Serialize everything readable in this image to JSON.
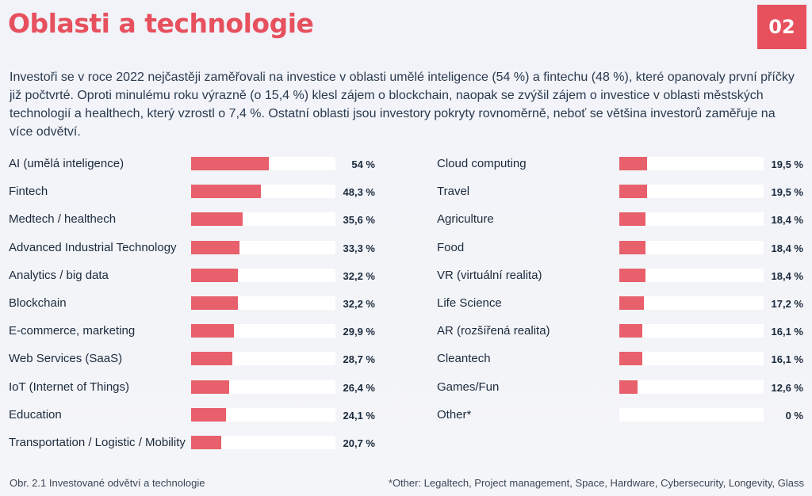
{
  "header": {
    "title": "Oblasti a technologie",
    "page_number": "02"
  },
  "intro": "Investoři se v roce 2022 nejčastěji zaměřovali na investice v oblasti umělé inteligence (54 %) a fintechu (48 %), které opanovaly první příčky již počtvrté. Oproti minulému roku výrazně (o 15,4 %) klesl zájem o blockchain, naopak se zvýšil zájem o investice v oblasti městských technologií a healthech, který vzrostl o 7,4 %. Ostatní oblasti jsou investory pokryty rovnoměrně, neboť se většina investorů zaměřuje na více odvětví.",
  "colors": {
    "accent": "#e7505d",
    "bar": "#e7606b",
    "track": "#ffffff"
  },
  "chart_data": {
    "type": "bar",
    "orientation": "horizontal",
    "xlim": [
      0,
      100
    ],
    "columns": [
      [
        {
          "label": "AI (umělá inteligence)",
          "value": 54,
          "value_text": "54 %"
        },
        {
          "label": "Fintech",
          "value": 48.3,
          "value_text": "48,3 %"
        },
        {
          "label": "Medtech / healthech",
          "value": 35.6,
          "value_text": "35,6 %"
        },
        {
          "label": "Advanced Industrial Technology",
          "value": 33.3,
          "value_text": "33,3 %"
        },
        {
          "label": "Analytics / big data",
          "value": 32.2,
          "value_text": "32,2 %"
        },
        {
          "label": "Blockchain",
          "value": 32.2,
          "value_text": "32,2 %"
        },
        {
          "label": "E-commerce, marketing",
          "value": 29.9,
          "value_text": "29,9 %"
        },
        {
          "label": "Web Services (SaaS)",
          "value": 28.7,
          "value_text": "28,7 %"
        },
        {
          "label": "IoT (Internet of Things)",
          "value": 26.4,
          "value_text": "26,4 %"
        },
        {
          "label": "Education",
          "value": 24.1,
          "value_text": "24,1 %"
        },
        {
          "label": "Transportation / Logistic / Mobility",
          "value": 20.7,
          "value_text": "20,7 %"
        }
      ],
      [
        {
          "label": "Cloud computing",
          "value": 19.5,
          "value_text": "19,5 %"
        },
        {
          "label": "Travel",
          "value": 19.5,
          "value_text": "19,5 %"
        },
        {
          "label": "Agriculture",
          "value": 18.4,
          "value_text": "18,4 %"
        },
        {
          "label": "Food",
          "value": 18.4,
          "value_text": "18,4 %"
        },
        {
          "label": "VR (virtuální realita)",
          "value": 18.4,
          "value_text": "18,4 %"
        },
        {
          "label": "Life Science",
          "value": 17.2,
          "value_text": "17,2 %"
        },
        {
          "label": "AR (rozšířená realita)",
          "value": 16.1,
          "value_text": "16,1 %"
        },
        {
          "label": "Cleantech",
          "value": 16.1,
          "value_text": "16,1 %"
        },
        {
          "label": "Games/Fun",
          "value": 12.6,
          "value_text": "12,6 %"
        },
        {
          "label": "Other*",
          "value": 0,
          "value_text": "0 %"
        }
      ]
    ]
  },
  "caption": "Obr. 2.1 Investované odvětví a technologie",
  "footnote": "*Other: Legaltech, Project management, Space, Hardware, Cybersecurity, Longevity, Glass"
}
